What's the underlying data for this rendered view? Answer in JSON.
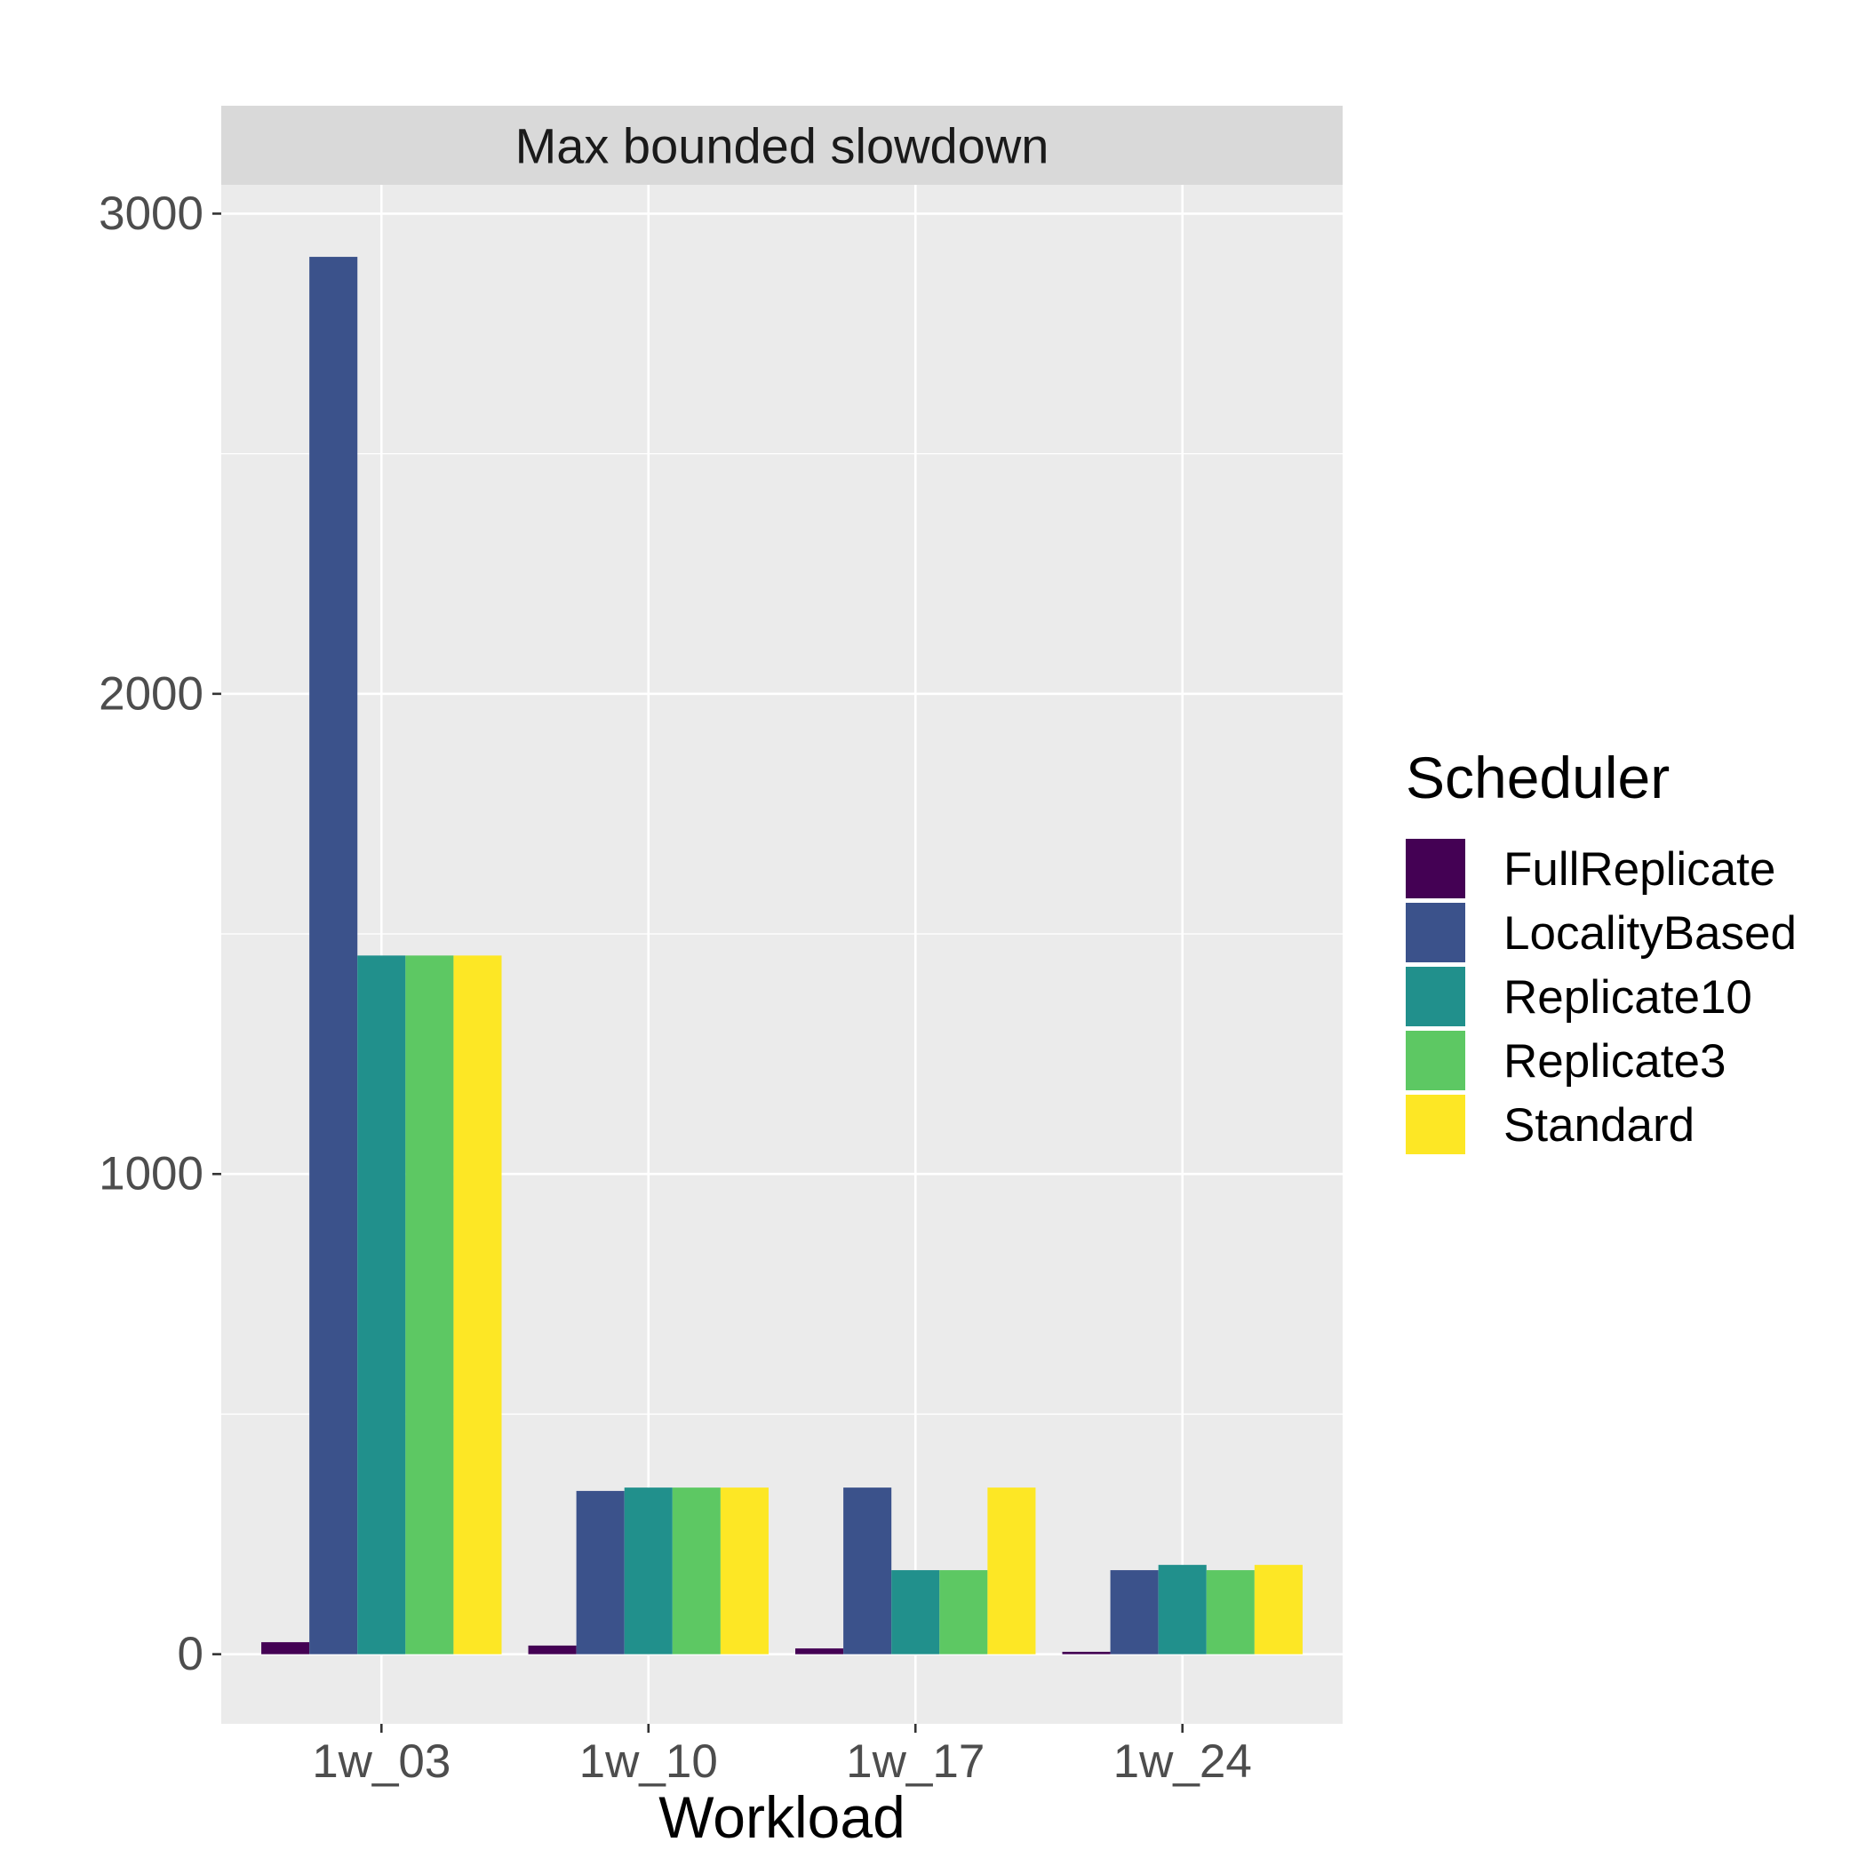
{
  "chart_data": {
    "type": "bar",
    "facet_title": "Max bounded slowdown",
    "xlabel": "Workload",
    "ylabel": "",
    "categories": [
      "1w_03",
      "1w_10",
      "1w_17",
      "1w_24"
    ],
    "y_ticks": [
      0,
      1000,
      2000,
      3000
    ],
    "ylim": [
      -145,
      3060
    ],
    "legend_title": "Scheduler",
    "legend_position": "right",
    "grid": true,
    "series": [
      {
        "name": "FullReplicate",
        "color": "#440154",
        "values": [
          25,
          18,
          12,
          5
        ]
      },
      {
        "name": "LocalityBased",
        "color": "#3B528B",
        "values": [
          2910,
          340,
          347,
          175
        ]
      },
      {
        "name": "Replicate10",
        "color": "#21908C",
        "values": [
          1455,
          347,
          175,
          186
        ]
      },
      {
        "name": "Replicate3",
        "color": "#5DC863",
        "values": [
          1455,
          347,
          175,
          175
        ]
      },
      {
        "name": "Standard",
        "color": "#FDE725",
        "values": [
          1455,
          347,
          347,
          186
        ]
      }
    ]
  }
}
